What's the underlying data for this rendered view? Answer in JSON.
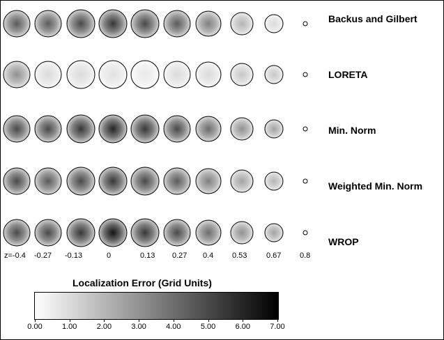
{
  "methods": [
    "Backus and Gilbert",
    "LORETA",
    "Min. Norm",
    "Weighted Min. Norm",
    "WROP"
  ],
  "z_labels": [
    "z=-0.4",
    "-0.27",
    "-0.13",
    "0",
    "0.13",
    "0.27",
    "0.4",
    "0.53",
    "0.67",
    "0.8"
  ],
  "colorbar": {
    "title": "Localization Error (Grid Units)",
    "ticks": [
      "0.00",
      "1.00",
      "2.00",
      "3.00",
      "4.00",
      "5.00",
      "6.00",
      "7.00"
    ],
    "range": [
      0,
      7
    ]
  },
  "peak_error_estimates": [
    [
      4.5,
      4.5,
      5.0,
      5.5,
      5.0,
      4.5,
      3.5,
      2.0,
      1.0,
      0
    ],
    [
      3.0,
      1.0,
      1.0,
      0.8,
      0.6,
      1.0,
      1.0,
      1.5,
      1.5,
      0
    ],
    [
      5.0,
      5.0,
      5.5,
      6.0,
      5.5,
      5.0,
      4.0,
      3.0,
      2.5,
      0
    ],
    [
      5.0,
      4.5,
      5.0,
      5.5,
      5.0,
      4.5,
      3.5,
      2.5,
      2.0,
      0
    ],
    [
      5.0,
      5.0,
      5.5,
      6.5,
      5.5,
      5.0,
      4.0,
      3.0,
      2.5,
      0
    ]
  ]
}
